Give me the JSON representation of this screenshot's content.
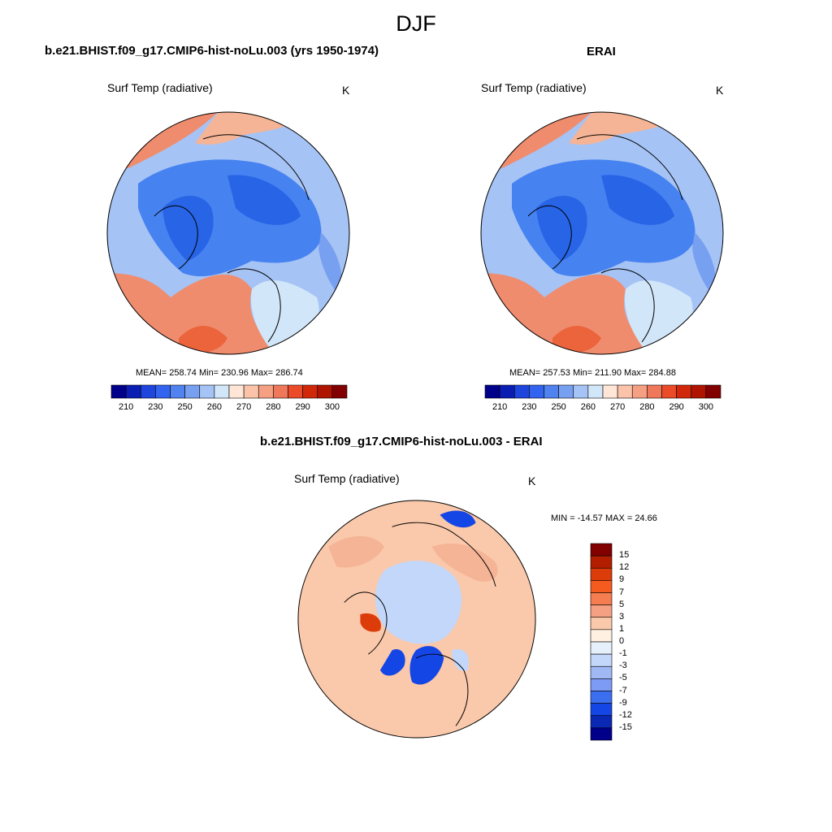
{
  "page": {
    "title": "DJF"
  },
  "panels": [
    {
      "title": "b.e21.BHIST.f09_g17.CMIP6-hist-noLu.003 (yrs 1950-1974)",
      "variable": "Surf Temp (radiative)",
      "units": "K",
      "stats": "MEAN= 258.74  Min= 230.96  Max= 286.74"
    },
    {
      "title": "ERAI",
      "variable": "Surf Temp (radiative)",
      "units": "K",
      "stats": "MEAN= 257.53  Min= 211.90  Max= 284.88"
    },
    {
      "title": "b.e21.BHIST.f09_g17.CMIP6-hist-noLu.003 - ERAI",
      "variable": "Surf Temp (radiative)",
      "units": "K",
      "stats": "MIN = -14.57 MAX =  24.66"
    }
  ],
  "colorbar_abs": {
    "labels": [
      "210",
      "230",
      "250",
      "260",
      "270",
      "280",
      "290",
      "300"
    ],
    "colors": [
      "#00008b",
      "#0a1eb4",
      "#1e46dc",
      "#3264f0",
      "#5082f0",
      "#78a0f0",
      "#a5c3f5",
      "#d2e6fa",
      "#ffe6d7",
      "#fac3aa",
      "#f5a082",
      "#f0785a",
      "#eb4b28",
      "#d2280a",
      "#af1400",
      "#820000"
    ]
  },
  "colorbar_diff": {
    "labels": [
      "15",
      "12",
      "9",
      "7",
      "5",
      "3",
      "1",
      "0",
      "-1",
      "-3",
      "-5",
      "-7",
      "-9",
      "-12",
      "-15"
    ],
    "colors": [
      "#820000",
      "#b41e00",
      "#dc3c0a",
      "#f55a1e",
      "#f57d50",
      "#f5a082",
      "#fac8aa",
      "#fff0e1",
      "#e6f0fa",
      "#c3d7fa",
      "#a0b9f5",
      "#7d9bf5",
      "#3c6ef0",
      "#1446e6",
      "#0a28b4",
      "#00008b"
    ]
  },
  "map_colors": {
    "deep_blue": "#2864e6",
    "blue": "#4682f0",
    "mid_blue": "#78a0f0",
    "light_blue": "#a5c3f5",
    "pale_blue": "#d2e6fa",
    "pale_orange": "#ffdcc8",
    "light_orange": "#f5b496",
    "orange": "#f08c6e",
    "red_orange": "#eb643c",
    "diff_bg": "#fac8aa",
    "diff_blue": "#c3d7fa",
    "diff_deep": "#1446e6",
    "diff_red": "#dc3c0a"
  }
}
